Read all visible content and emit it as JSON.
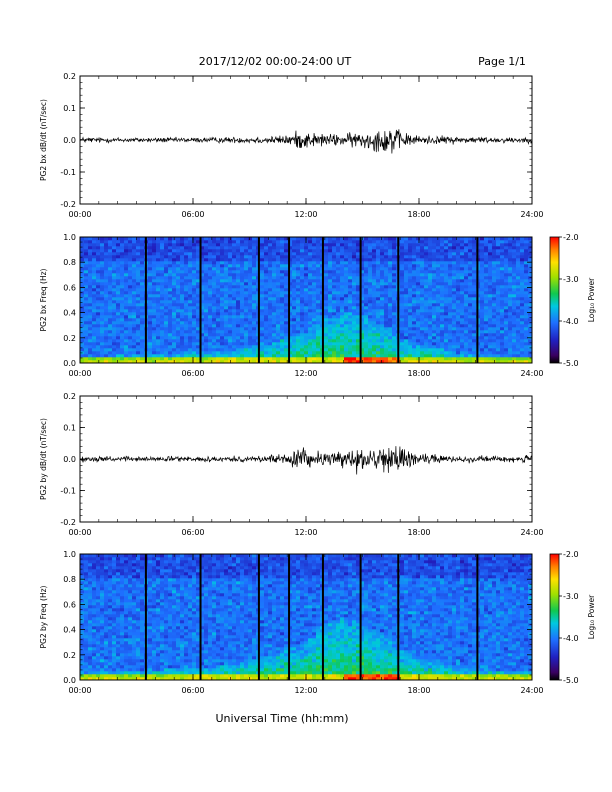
{
  "header": {
    "title": "2017/12/02  00:00-24:00 UT",
    "page": "Page 1/1"
  },
  "xlabel": "Universal Time (hh:mm)",
  "chart_data": [
    {
      "type": "line",
      "ylabel": "PG2 bx dB/dt (nT/sec)",
      "xlim": [
        0,
        24
      ],
      "ylim": [
        -0.2,
        0.2
      ],
      "yticks": [
        "0.2",
        "0.1",
        "0.0",
        "-0.1",
        "-0.2"
      ],
      "xticks": [
        "00:00",
        "06:00",
        "12:00",
        "18:00",
        "24:00"
      ],
      "series": [
        {
          "x": [
            0,
            2,
            4,
            6,
            8,
            10,
            11,
            11.5,
            12,
            12.5,
            13,
            14,
            15,
            15.5,
            16,
            16.5,
            17,
            17.5,
            18,
            20,
            22,
            24
          ],
          "amplitude": [
            0.012,
            0.01,
            0.01,
            0.01,
            0.012,
            0.015,
            0.02,
            0.035,
            0.035,
            0.03,
            0.025,
            0.025,
            0.035,
            0.04,
            0.05,
            0.065,
            0.035,
            0.025,
            0.018,
            0.015,
            0.012,
            0.012
          ]
        }
      ]
    },
    {
      "type": "heatmap",
      "ylabel": "PG2 bx Freq (Hz)",
      "xlim": [
        0,
        24
      ],
      "ylim": [
        0,
        1.0
      ],
      "yticks": [
        "1.0",
        "0.8",
        "0.6",
        "0.4",
        "0.2",
        "0.0"
      ],
      "xticks": [
        "00:00",
        "06:00",
        "12:00",
        "18:00",
        "24:00"
      ],
      "colorbar": {
        "label": "Log₁₀ Power",
        "range": [
          -5.0,
          -2.0
        ],
        "ticks": [
          "-2.0",
          "-3.0",
          "-4.0",
          "-5.0"
        ]
      },
      "data_gaps_hours": [
        3.5,
        6.4,
        9.5,
        11.1,
        12.9,
        14.9,
        16.9,
        21.1
      ],
      "activity_envelope": {
        "x": [
          0,
          4,
          8,
          10,
          12,
          13,
          14,
          15,
          16,
          17,
          18,
          20,
          24
        ],
        "peak_freq_hz": [
          0.05,
          0.07,
          0.1,
          0.15,
          0.25,
          0.35,
          0.4,
          0.38,
          0.3,
          0.2,
          0.15,
          0.08,
          0.05
        ]
      }
    },
    {
      "type": "line",
      "ylabel": "PG2 by dB/dt (nT/sec)",
      "xlim": [
        0,
        24
      ],
      "ylim": [
        -0.2,
        0.2
      ],
      "yticks": [
        "0.2",
        "0.1",
        "0.0",
        "-0.1",
        "-0.2"
      ],
      "xticks": [
        "00:00",
        "06:00",
        "12:00",
        "18:00",
        "24:00"
      ],
      "series": [
        {
          "x": [
            0,
            2,
            4,
            6,
            8,
            10,
            11,
            11.5,
            12,
            12.5,
            13,
            14,
            14.5,
            15,
            16,
            16.5,
            17,
            17.5,
            18,
            20,
            22,
            24
          ],
          "amplitude": [
            0.012,
            0.01,
            0.01,
            0.01,
            0.012,
            0.015,
            0.025,
            0.05,
            0.04,
            0.03,
            0.03,
            0.035,
            0.06,
            0.04,
            0.045,
            0.065,
            0.05,
            0.035,
            0.02,
            0.015,
            0.012,
            0.015
          ]
        }
      ]
    },
    {
      "type": "heatmap",
      "ylabel": "PG2 by Freq (Hz)",
      "xlim": [
        0,
        24
      ],
      "ylim": [
        0,
        1.0
      ],
      "yticks": [
        "1.0",
        "0.8",
        "0.6",
        "0.4",
        "0.2",
        "0.0"
      ],
      "xticks": [
        "00:00",
        "06:00",
        "12:00",
        "18:00",
        "24:00"
      ],
      "colorbar": {
        "label": "Log₁₀ Power",
        "range": [
          -5.0,
          -2.0
        ],
        "ticks": [
          "-2.0",
          "-3.0",
          "-4.0",
          "-5.0"
        ]
      },
      "data_gaps_hours": [
        3.5,
        6.4,
        9.5,
        11.1,
        12.9,
        14.9,
        16.9,
        21.1
      ],
      "activity_envelope": {
        "x": [
          0,
          4,
          8,
          10,
          12,
          13,
          14,
          15,
          16,
          17,
          18,
          20,
          24
        ],
        "peak_freq_hz": [
          0.06,
          0.08,
          0.12,
          0.2,
          0.3,
          0.45,
          0.5,
          0.45,
          0.38,
          0.25,
          0.18,
          0.1,
          0.06
        ]
      }
    }
  ]
}
